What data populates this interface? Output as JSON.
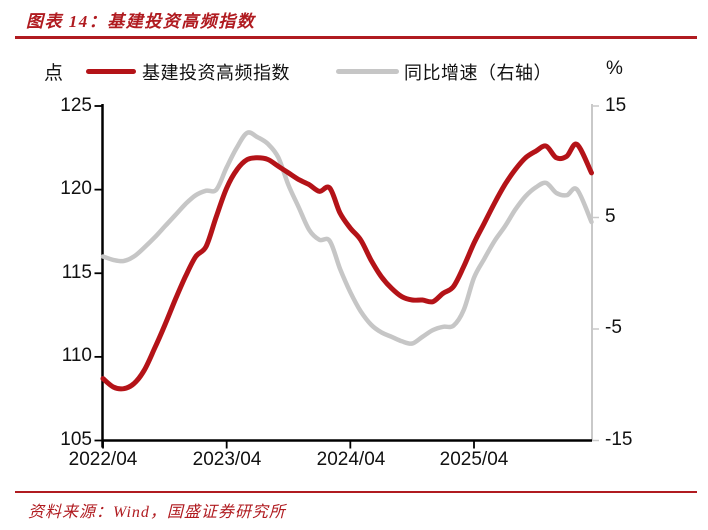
{
  "header": {
    "title": "图表 14：基建投资高频指数"
  },
  "footer": {
    "source": "资料来源：Wind，国盛证券研究所"
  },
  "legend": [
    {
      "label": "基建投资高频指数",
      "color": "#b41318"
    },
    {
      "label": "同比增速（右轴）",
      "color": "#c6c6c6"
    }
  ],
  "colors": {
    "accent_red": "#b01b20",
    "axis_black": "#000000",
    "axis_gray": "#c9c9c9"
  },
  "chart_data": {
    "type": "line",
    "title": "基建投资高频指数",
    "x_tick_labels": [
      "2022/04",
      "2023/04",
      "2024/04",
      "2025/04"
    ],
    "x_tick_months": [
      0,
      12,
      24,
      36
    ],
    "months": [
      0,
      1,
      2,
      3,
      4,
      5,
      6,
      7,
      8,
      9,
      10,
      11,
      12,
      13,
      14,
      15,
      16,
      17,
      18,
      19,
      20,
      21,
      22,
      23,
      24,
      25,
      26,
      27,
      28,
      29,
      30,
      31,
      32,
      33,
      34,
      35,
      36,
      37,
      38,
      39,
      40,
      41,
      42,
      43,
      44,
      45,
      46,
      47.4
    ],
    "left_axis": {
      "unit": "点",
      "ticks": [
        "125",
        "120",
        "115",
        "110",
        "105"
      ],
      "range": [
        105,
        125
      ]
    },
    "right_axis": {
      "unit": "%",
      "ticks": [
        "15",
        "5",
        "-5",
        "-15"
      ],
      "range": [
        -15,
        15
      ]
    },
    "grid": false,
    "legend_position": "top",
    "series": [
      {
        "name": "基建投资高频指数",
        "axis": "left",
        "color": "#b41318",
        "width": 5,
        "values": [
          108.7,
          108.2,
          108.1,
          108.4,
          109.2,
          110.5,
          111.9,
          113.4,
          114.8,
          116.0,
          116.6,
          118.4,
          120.1,
          121.2,
          121.8,
          121.9,
          121.8,
          121.4,
          121.0,
          120.6,
          120.3,
          119.9,
          120.1,
          118.6,
          117.7,
          117.0,
          115.8,
          114.8,
          114.1,
          113.6,
          113.4,
          113.4,
          113.3,
          113.8,
          114.2,
          115.4,
          116.8,
          118.0,
          119.2,
          120.3,
          121.2,
          121.9,
          122.3,
          122.6,
          121.9,
          122.0,
          122.7,
          121.0
        ]
      },
      {
        "name": "同比增速（右轴）",
        "axis": "right",
        "color": "#c6c6c6",
        "width": 4.5,
        "values": [
          1.5,
          1.2,
          1.1,
          1.5,
          2.3,
          3.2,
          4.2,
          5.2,
          6.2,
          7.0,
          7.4,
          7.5,
          9.5,
          11.3,
          12.6,
          12.2,
          11.6,
          10.4,
          7.9,
          5.9,
          3.9,
          3.0,
          2.9,
          0.4,
          -1.7,
          -3.4,
          -4.6,
          -5.3,
          -5.7,
          -6.1,
          -6.3,
          -5.7,
          -5.1,
          -4.8,
          -4.7,
          -3.3,
          -0.4,
          1.3,
          2.9,
          4.2,
          5.7,
          6.9,
          7.7,
          8.1,
          7.2,
          7.0,
          7.5,
          4.6
        ]
      }
    ]
  }
}
